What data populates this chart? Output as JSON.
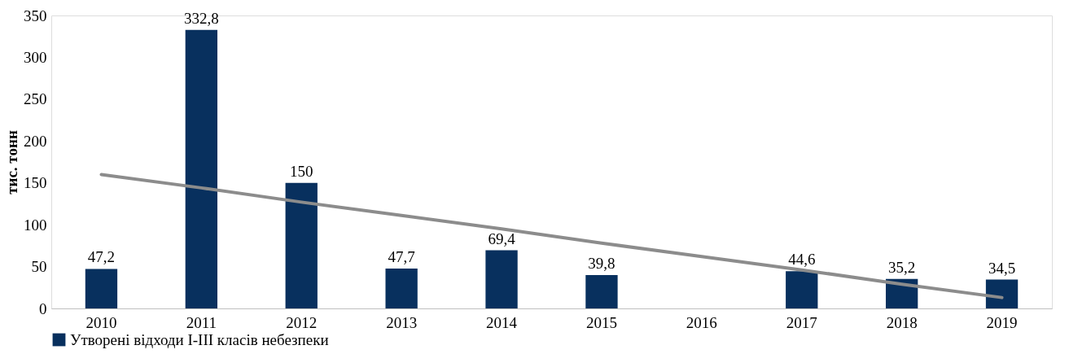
{
  "chart_data": {
    "type": "bar",
    "ylabel": "тис. тонн",
    "categories": [
      "2010",
      "2011",
      "2012",
      "2013",
      "2014",
      "2015",
      "2016",
      "2017",
      "2018",
      "2019"
    ],
    "series": [
      {
        "name": "Утворені відходи І-ІІІ класів небезпеки",
        "color": "#08305e",
        "values": [
          47.2,
          332.8,
          150,
          47.7,
          69.4,
          39.8,
          null,
          44.6,
          35.2,
          34.5
        ],
        "value_labels": [
          "47,2",
          "332,8",
          "150",
          "47,7",
          "69,4",
          "39,8",
          null,
          "44,6",
          "35,2",
          "34,5"
        ]
      },
      {
        "type": "line",
        "color": "#8c8c8c",
        "values": [
          160,
          144,
          127,
          111,
          95,
          78,
          62,
          46,
          29,
          13
        ]
      }
    ],
    "ylim": [
      0,
      350
    ],
    "yticks": [
      0,
      50,
      100,
      150,
      200,
      250,
      300,
      350
    ],
    "grid": false,
    "legend": "bottom"
  }
}
